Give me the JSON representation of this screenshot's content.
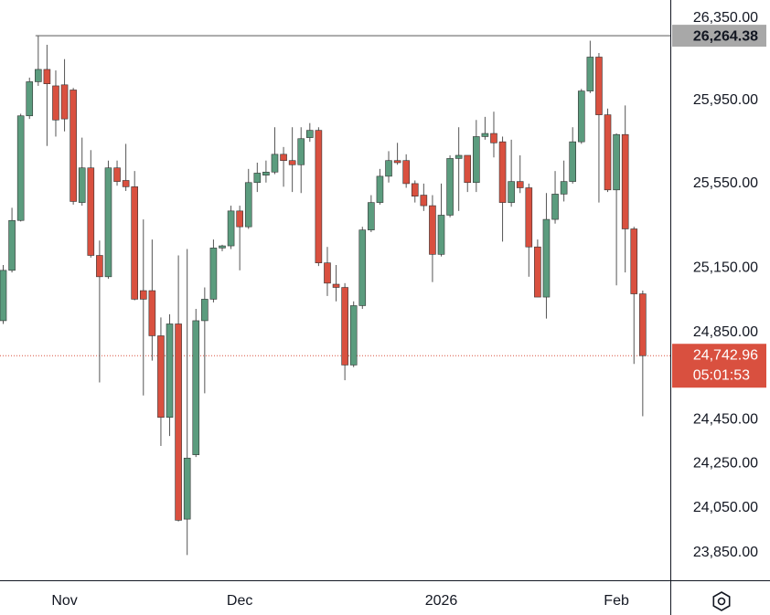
{
  "chart_data": {
    "type": "candlestick",
    "categories": [
      null,
      null,
      null,
      null,
      null,
      null,
      null,
      "Nov",
      null,
      null,
      null,
      null,
      null,
      null,
      null,
      null,
      null,
      null,
      null,
      null,
      null,
      null,
      null,
      null,
      null,
      null,
      null,
      "Dec",
      null,
      null,
      null,
      null,
      null,
      null,
      null,
      null,
      null,
      null,
      null,
      null,
      null,
      null,
      null,
      null,
      null,
      null,
      null,
      null,
      null,
      null,
      "2026",
      null,
      null,
      null,
      null,
      null,
      null,
      null,
      null,
      null,
      null,
      null,
      null,
      null,
      null,
      null,
      null,
      null,
      null,
      null,
      "Feb",
      null,
      null,
      null
    ],
    "open": [
      24905,
      25140,
      25375,
      25875,
      26040,
      26100,
      26020,
      26025,
      26000,
      25460,
      25625,
      25210,
      25110,
      25625,
      25565,
      25535,
      25045,
      25045,
      24835,
      24460,
      24890,
      24000,
      24290,
      24905,
      25005,
      25245,
      25255,
      25420,
      25345,
      25555,
      25590,
      25605,
      25690,
      25660,
      25640,
      25770,
      25805,
      25175,
      25075,
      25060,
      24700,
      24975,
      25330,
      25460,
      25585,
      25660,
      25660,
      25550,
      25495,
      25445,
      25215,
      25400,
      25670,
      25685,
      25555,
      25775,
      25790,
      25750,
      25460,
      25560,
      25530,
      25250,
      25015,
      25380,
      25500,
      25560,
      25750,
      25995,
      26160,
      25880,
      25520,
      25785,
      25335,
      25030
    ],
    "high": [
      25165,
      25435,
      25885,
      26060,
      26264.38,
      26220,
      26095,
      26150,
      26010,
      25770,
      25710,
      25280,
      25660,
      25660,
      25740,
      25610,
      25380,
      25285,
      24920,
      24935,
      25210,
      25240,
      24960,
      25060,
      25285,
      25260,
      25445,
      25445,
      25620,
      25650,
      25660,
      25820,
      25725,
      25820,
      25820,
      25840,
      25820,
      25250,
      25165,
      25080,
      24995,
      25345,
      25495,
      25620,
      25705,
      25745,
      25690,
      25565,
      25550,
      25495,
      25550,
      25685,
      25820,
      25685,
      25855,
      25870,
      25895,
      25775,
      25760,
      25685,
      25550,
      25285,
      25505,
      25610,
      25660,
      25820,
      26005,
      26240,
      26180,
      25910,
      25790,
      25925,
      25345,
      25045
    ],
    "low": [
      24890,
      25130,
      25370,
      25860,
      26020,
      25730,
      25775,
      25800,
      25450,
      25445,
      25200,
      24620,
      25100,
      25540,
      25515,
      25000,
      24560,
      24720,
      24330,
      24375,
      23990,
      23840,
      24280,
      24570,
      24990,
      25230,
      25240,
      25140,
      25335,
      25510,
      25555,
      25595,
      25535,
      25510,
      25505,
      25750,
      25160,
      25020,
      24995,
      24630,
      24690,
      24960,
      25320,
      25450,
      25555,
      25640,
      25530,
      25460,
      25420,
      25085,
      25205,
      25390,
      25420,
      25510,
      25510,
      25760,
      25675,
      25275,
      25440,
      25505,
      25110,
      25015,
      24915,
      25360,
      25465,
      25550,
      25740,
      25985,
      25460,
      25510,
      25070,
      25130,
      24705,
      24465
    ],
    "close": [
      25140,
      25375,
      25875,
      26040,
      26100,
      26030,
      25855,
      25860,
      25465,
      25625,
      25210,
      25110,
      25625,
      25560,
      25535,
      25005,
      25005,
      24835,
      24460,
      24890,
      23995,
      24275,
      24905,
      25005,
      25245,
      25255,
      25420,
      25345,
      25555,
      25600,
      25605,
      25690,
      25660,
      25640,
      25765,
      25805,
      25175,
      25080,
      25060,
      24700,
      24975,
      25330,
      25460,
      25585,
      25660,
      25650,
      25550,
      25490,
      25445,
      25215,
      25400,
      25670,
      25685,
      25555,
      25775,
      25790,
      25745,
      25460,
      25560,
      25530,
      25250,
      25015,
      25380,
      25500,
      25560,
      25750,
      25995,
      26160,
      25880,
      25520,
      25785,
      25335,
      25030,
      24742.96
    ],
    "up_color": "#5b9c7e",
    "down_color": "#d9503f",
    "log_scale": true,
    "grid": false,
    "ylim": [
      23728,
      26440
    ],
    "yticks": [
      {
        "value": 23850,
        "label": "23,850.00"
      },
      {
        "value": 24050,
        "label": "24,050.00"
      },
      {
        "value": 24250,
        "label": "24,250.00"
      },
      {
        "value": 24450,
        "label": "24,450.00"
      },
      {
        "value": 24850,
        "label": "24,850.00"
      },
      {
        "value": 25150,
        "label": "25,150.00"
      },
      {
        "value": 25550,
        "label": "25,550.00"
      },
      {
        "value": 25950,
        "label": "25,950.00"
      },
      {
        "value": 26350,
        "label": "26,350.00"
      }
    ],
    "high_line": {
      "value": 26264.38,
      "label": "26,264.38"
    },
    "last_price": {
      "value": 24742.96,
      "label": "24,742.96"
    },
    "countdown": "05:01:53"
  }
}
